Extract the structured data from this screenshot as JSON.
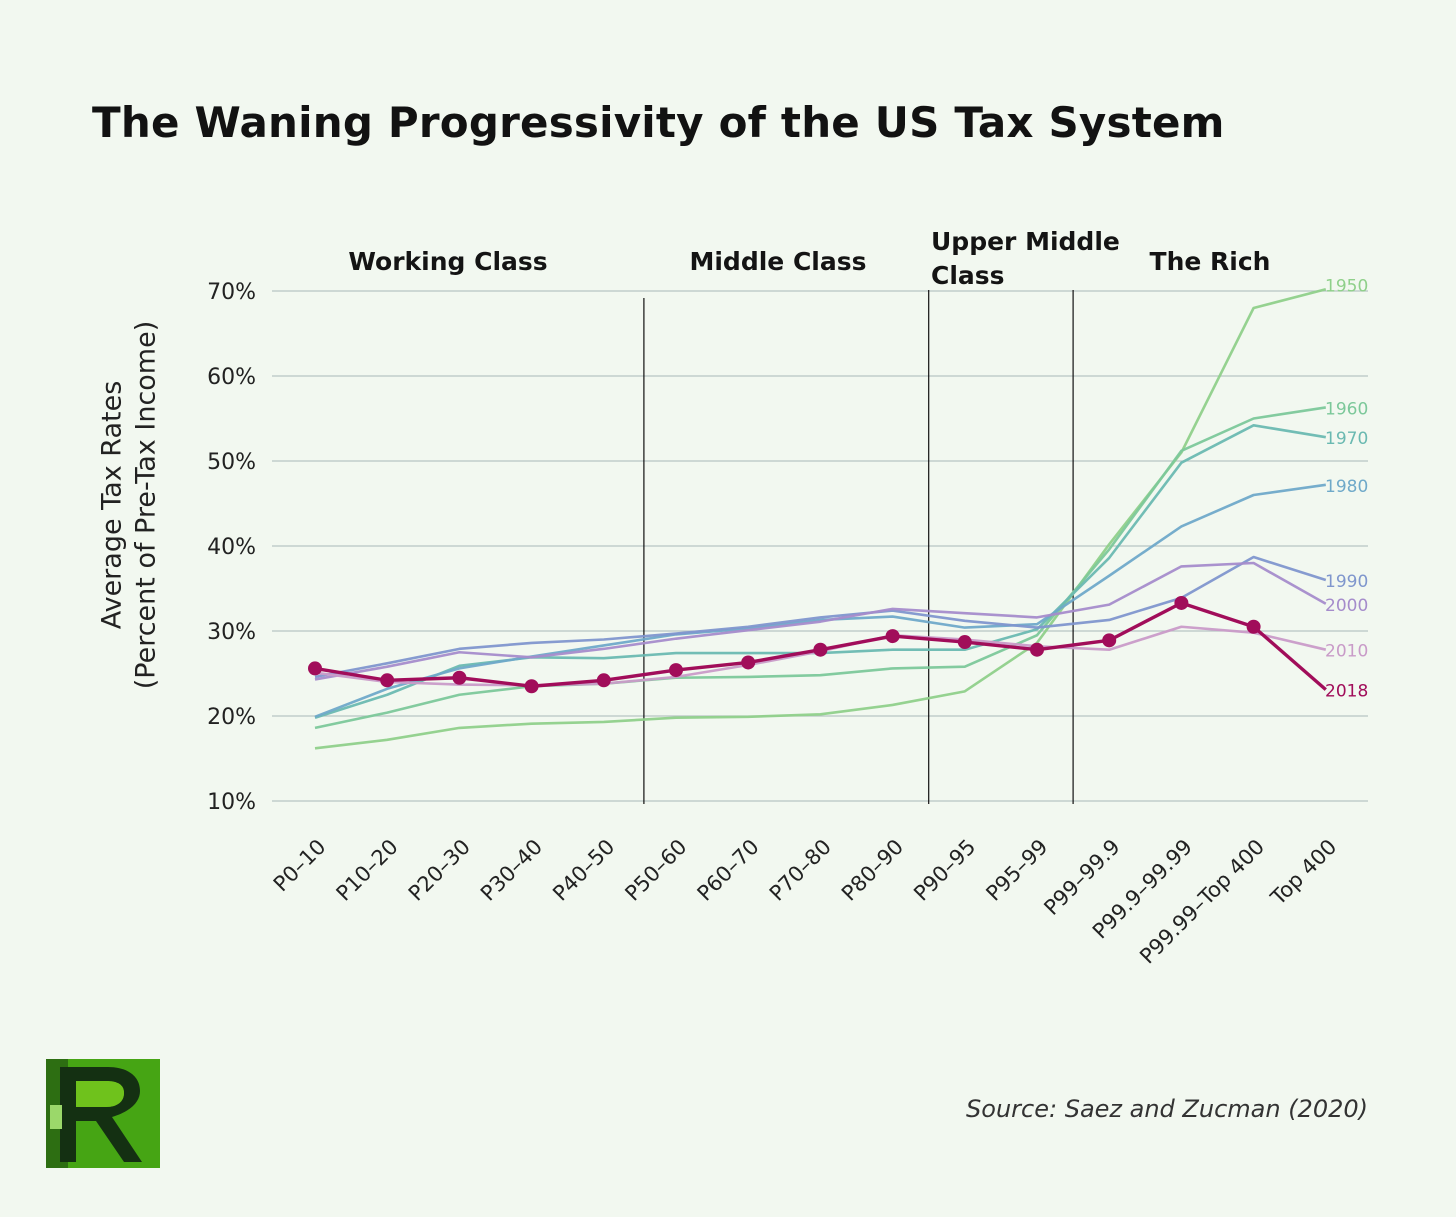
{
  "title": "The Waning Progressivity of the US Tax System",
  "source": "Source: Saez and Zucman (2020)",
  "logo_text": "R",
  "chart_data": {
    "type": "line",
    "title": "The Waning Progressivity of the US Tax System",
    "ylabel": "Average Tax Rates",
    "ylabel_line2": "(Percent of Pre-Tax Income)",
    "xlabel": "",
    "ylim": [
      10,
      70
    ],
    "yticks": [
      10,
      20,
      30,
      40,
      50,
      60,
      70
    ],
    "ytick_labels": [
      "10%",
      "20%",
      "30%",
      "40%",
      "50%",
      "60%",
      "70%"
    ],
    "categories": [
      "P0–10",
      "P10–20",
      "P20–30",
      "P30–40",
      "P40–50",
      "P50–60",
      "P60–70",
      "P70–80",
      "P80–90",
      "P90–95",
      "P95–99",
      "P99–99.9",
      "P99.9–99.99",
      "P99.99–Top 400",
      "Top 400"
    ],
    "grid": true,
    "groups": [
      {
        "label": "Working Class",
        "lines": [
          "Working Class"
        ]
      },
      {
        "label": "Middle Class",
        "lines": [
          "Middle Class"
        ]
      },
      {
        "label": "Upper Middle Class",
        "lines": [
          "Upper Middle",
          "Class"
        ]
      },
      {
        "label": "The Rich",
        "lines": [
          "The Rich"
        ]
      }
    ],
    "series": [
      {
        "name": "1950",
        "color": "#8fd08a",
        "values": [
          16.2,
          17.2,
          18.6,
          19.1,
          19.3,
          19.8,
          19.9,
          20.2,
          21.3,
          22.9,
          28.6,
          40.2,
          51.0,
          68.0,
          70.2
        ]
      },
      {
        "name": "1960",
        "color": "#7cc89a",
        "values": [
          18.6,
          20.4,
          22.5,
          23.5,
          23.8,
          24.5,
          24.6,
          24.8,
          25.6,
          25.8,
          29.5,
          39.6,
          51.2,
          55.0,
          56.3
        ]
      },
      {
        "name": "1970",
        "color": "#6ab9b1",
        "values": [
          19.8,
          22.5,
          25.9,
          26.9,
          26.8,
          27.4,
          27.4,
          27.4,
          27.8,
          27.8,
          30.2,
          38.6,
          49.8,
          54.2,
          52.8
        ]
      },
      {
        "name": "1980",
        "color": "#6fa9c9",
        "values": [
          19.9,
          23.2,
          25.6,
          27.0,
          28.3,
          29.6,
          30.3,
          31.3,
          31.7,
          30.4,
          30.8,
          36.5,
          42.3,
          46.0,
          47.2
        ]
      },
      {
        "name": "1990",
        "color": "#7f96cd",
        "values": [
          24.6,
          26.2,
          27.9,
          28.6,
          29.0,
          29.7,
          30.5,
          31.6,
          32.4,
          31.2,
          30.4,
          31.3,
          33.9,
          38.7,
          36.0
        ]
      },
      {
        "name": "2000",
        "color": "#a58ccb",
        "values": [
          24.3,
          25.8,
          27.5,
          26.9,
          27.9,
          29.1,
          30.1,
          31.1,
          32.6,
          32.1,
          31.6,
          33.1,
          37.6,
          38.0,
          33.2
        ]
      },
      {
        "name": "2010",
        "color": "#c99bc8",
        "values": [
          25.1,
          24.0,
          23.7,
          23.6,
          23.8,
          24.6,
          26.0,
          27.6,
          29.5,
          29.0,
          28.2,
          27.8,
          30.5,
          29.8,
          27.8
        ]
      },
      {
        "name": "2018",
        "color": "#a10d5a",
        "values": [
          25.6,
          24.2,
          24.5,
          23.5,
          24.2,
          25.4,
          26.3,
          27.8,
          29.4,
          28.7,
          27.8,
          28.9,
          33.3,
          30.5,
          23.1
        ]
      }
    ],
    "highlight_series": "2018"
  }
}
